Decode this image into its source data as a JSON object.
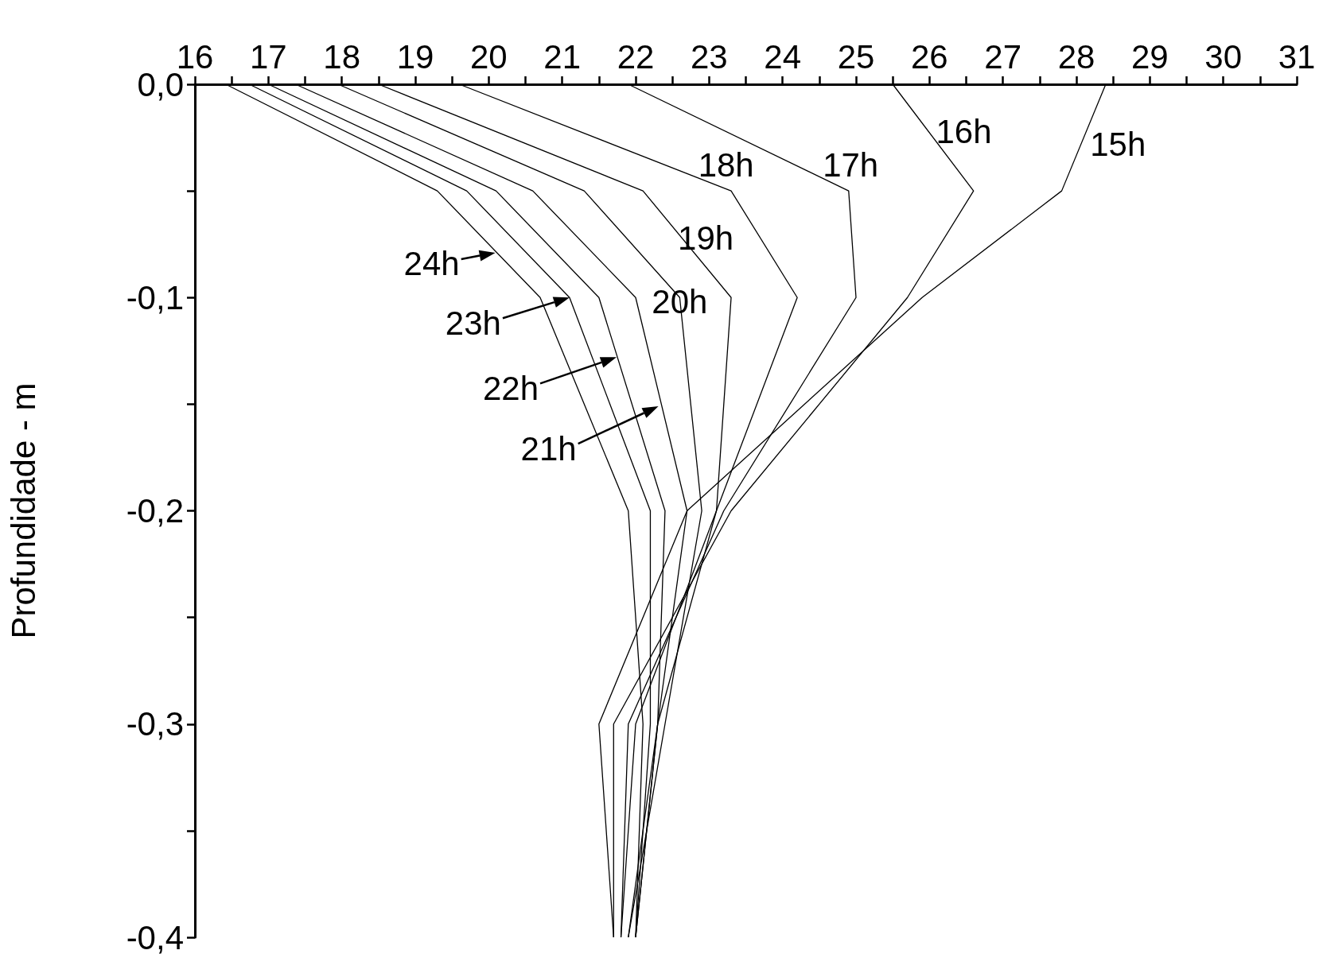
{
  "chart_data": {
    "type": "line",
    "ylabel": "Profundidade - m",
    "xlim": [
      16,
      31
    ],
    "xticks": [
      16,
      {
        "value": 16.5,
        "label": null
      },
      17,
      {
        "value": 17.5,
        "label": null
      },
      18,
      {
        "value": 18.5,
        "label": null
      },
      19,
      {
        "value": 19.5,
        "label": null
      },
      20,
      {
        "value": 20.5,
        "label": null
      },
      21,
      {
        "value": 21.5,
        "label": null
      },
      22,
      {
        "value": 22.5,
        "label": null
      },
      23,
      {
        "value": 23.5,
        "label": null
      },
      24,
      {
        "value": 24.5,
        "label": null
      },
      25,
      {
        "value": 25.5,
        "label": null
      },
      26,
      {
        "value": 26.5,
        "label": null
      },
      27,
      {
        "value": 27.5,
        "label": null
      },
      28,
      {
        "value": 28.5,
        "label": null
      },
      29,
      {
        "value": 29.5,
        "label": null
      },
      30,
      {
        "value": 30.5,
        "label": null
      },
      31
    ],
    "ylim": [
      -0.4,
      0
    ],
    "yticks": [
      {
        "value": 0,
        "label": "0,0"
      },
      {
        "value": -0.05,
        "label": null
      },
      {
        "value": -0.1,
        "label": "-0,1"
      },
      {
        "value": -0.15,
        "label": null
      },
      {
        "value": -0.2,
        "label": "-0,2"
      },
      {
        "value": -0.25,
        "label": null
      },
      {
        "value": -0.3,
        "label": "-0,3"
      },
      {
        "value": -0.35,
        "label": null
      },
      {
        "value": -0.4,
        "label": "-0,4"
      }
    ],
    "grid": false,
    "marker": "none",
    "line_style": "solid",
    "series": [
      {
        "color": "#000000",
        "x": [
          28.4,
          27.8,
          25.9,
          22.7,
          21.5,
          21.7
        ],
        "values": [
          0,
          -0.05,
          -0.1,
          -0.2,
          -0.3,
          -0.4
        ]
      },
      {
        "color": "#000000",
        "x": [
          25.5,
          26.6,
          25.7,
          23.3,
          21.7,
          21.7
        ],
        "values": [
          0,
          -0.05,
          -0.1,
          -0.2,
          -0.3,
          -0.4
        ]
      },
      {
        "color": "#000000",
        "x": [
          21.9,
          24.9,
          25.0,
          23.2,
          21.9,
          21.8
        ],
        "values": [
          0,
          -0.05,
          -0.1,
          -0.2,
          -0.3,
          -0.4
        ]
      },
      {
        "color": "#000000",
        "x": [
          19.6,
          23.3,
          24.2,
          23.1,
          22.0,
          21.8
        ],
        "values": [
          0,
          -0.05,
          -0.1,
          -0.2,
          -0.3,
          -0.4
        ]
      },
      {
        "color": "#000000",
        "x": [
          18.5,
          22.1,
          23.3,
          23.1,
          22.3,
          21.9
        ],
        "values": [
          0,
          -0.05,
          -0.1,
          -0.2,
          -0.3,
          -0.4
        ]
      },
      {
        "color": "#000000",
        "x": [
          17.95,
          21.3,
          22.6,
          22.9,
          22.4,
          21.9
        ],
        "values": [
          0,
          -0.05,
          -0.1,
          -0.2,
          -0.3,
          -0.4
        ]
      },
      {
        "color": "#000000",
        "x": [
          17.37,
          20.6,
          22.0,
          22.7,
          22.3,
          22.0
        ],
        "values": [
          0,
          -0.05,
          -0.1,
          -0.2,
          -0.3,
          -0.4
        ]
      },
      {
        "color": "#000000",
        "x": [
          17.0,
          20.1,
          21.5,
          22.4,
          22.3,
          22.0
        ],
        "values": [
          0,
          -0.05,
          -0.1,
          -0.2,
          -0.3,
          -0.4
        ]
      },
      {
        "color": "#000000",
        "x": [
          16.74,
          19.7,
          21.1,
          22.2,
          22.2,
          22.0
        ],
        "values": [
          0,
          -0.05,
          -0.1,
          -0.2,
          -0.3,
          -0.4
        ]
      },
      {
        "color": "#000000",
        "x": [
          16.42,
          19.3,
          20.7,
          21.9,
          22.1,
          22.0
        ],
        "values": [
          0,
          -0.05,
          -0.1,
          -0.2,
          -0.3,
          -0.4
        ]
      }
    ],
    "annotations": [
      {
        "text": "15h",
        "x": 28.1,
        "y": -0.028
      },
      {
        "text": "16h",
        "x": 25.98,
        "y": -0.022
      },
      {
        "text": "17h",
        "x": 24.19,
        "y": -0.038
      },
      {
        "text": "18h",
        "x": 22.43,
        "y": -0.038
      },
      {
        "text": "19h",
        "x": 22.64,
        "y": -0.072
      },
      {
        "text": "20h",
        "x": 22.6,
        "y": -0.1
      },
      {
        "text": "24h",
        "x": 20.09,
        "y": -0.079
      },
      {
        "text": "23h",
        "x": 21.1,
        "y": -0.1
      },
      {
        "text": "22h",
        "x": 21.74,
        "y": -0.128
      },
      {
        "text": "21h",
        "x": 22.31,
        "y": -0.151
      }
    ]
  }
}
